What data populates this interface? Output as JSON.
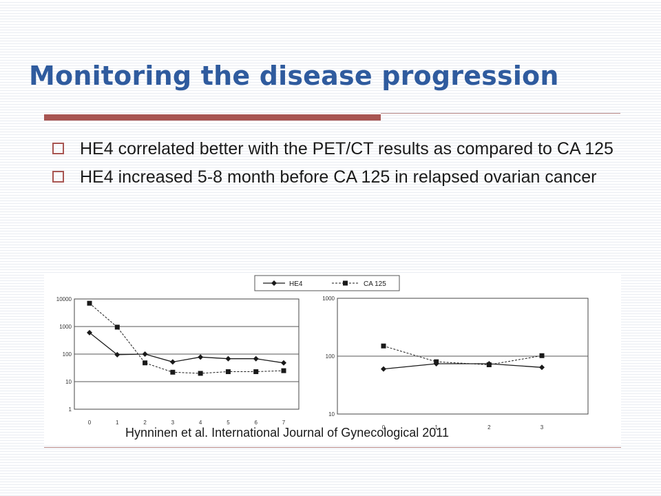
{
  "slide": {
    "title": "Monitoring the disease progression",
    "bullets": [
      "HE4 correlated better with the PET/CT results as compared to CA 125",
      "HE4 increased 5-8 month before CA 125 in relapsed ovarian cancer"
    ],
    "citation": "Hynninen et al. International Journal of Gynecological 2011"
  },
  "colors": {
    "title": "#2f5b9e",
    "accent": "#a85552",
    "series": "#1a1a1a"
  },
  "legend": {
    "placement": "top-center",
    "entries": [
      "HE4",
      "CA 125"
    ]
  },
  "chart_data": [
    {
      "type": "line",
      "scale": "log",
      "x": [
        0,
        1,
        2,
        3,
        4,
        5,
        6,
        7
      ],
      "ylim": [
        1,
        10000
      ],
      "yticks": [
        "10000",
        "1000",
        "100",
        "10",
        "1"
      ],
      "xticks": [
        "0",
        "1",
        "2",
        "3",
        "4",
        "5",
        "6",
        "7"
      ],
      "grid": "horizontal",
      "series": [
        {
          "name": "HE4",
          "style": "solid-diamond",
          "values": [
            600,
            95,
            100,
            52,
            78,
            68,
            68,
            48
          ]
        },
        {
          "name": "CA 125",
          "style": "dashed-square",
          "values": [
            7000,
            950,
            48,
            22,
            20,
            23,
            23,
            25
          ]
        }
      ]
    },
    {
      "type": "line",
      "scale": "log",
      "x": [
        0,
        1,
        2,
        3
      ],
      "ylim": [
        10,
        1000
      ],
      "yticks": [
        "1000",
        "100",
        "10"
      ],
      "xticks": [
        "0",
        "1",
        "2",
        "3"
      ],
      "grid": "horizontal",
      "series": [
        {
          "name": "HE4",
          "style": "solid-diamond",
          "values": [
            60,
            74,
            74,
            64
          ]
        },
        {
          "name": "CA 125",
          "style": "dashed-square",
          "values": [
            150,
            80,
            71,
            102
          ]
        }
      ]
    }
  ]
}
